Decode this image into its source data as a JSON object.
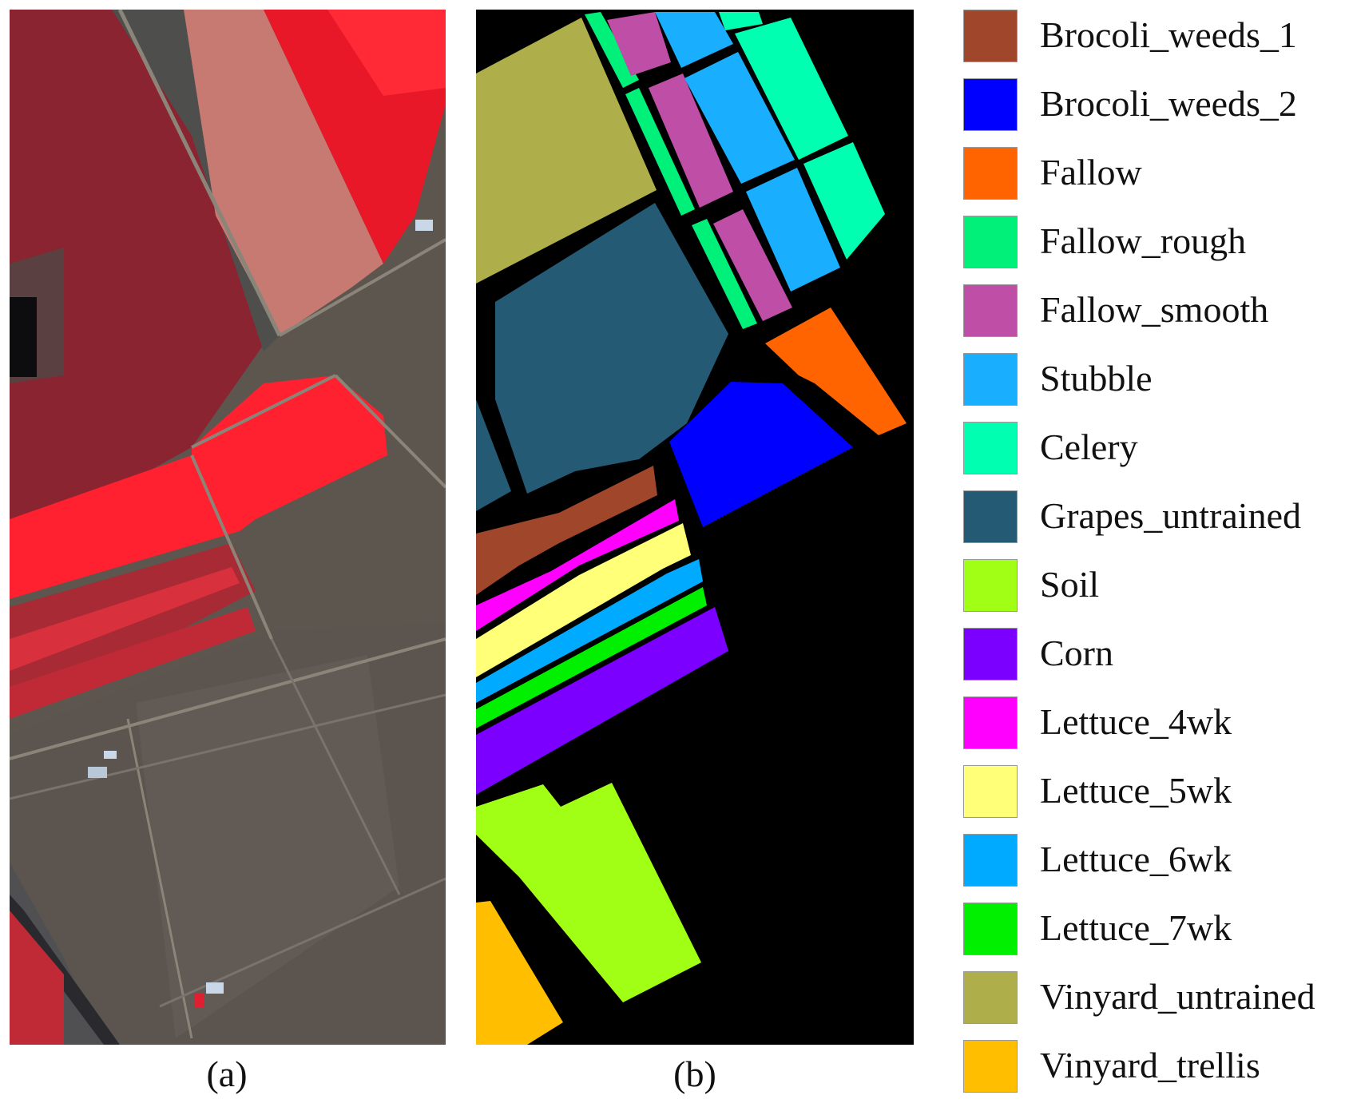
{
  "figure": {
    "panel_a": {
      "caption": "(a)"
    },
    "panel_b": {
      "caption": "(b)",
      "background_color": "#000000"
    }
  },
  "legend": {
    "items": [
      {
        "label": "Brocoli_weeds_1",
        "color": "#A0462B"
      },
      {
        "label": "Brocoli_weeds_2",
        "color": "#0000FF"
      },
      {
        "label": "Fallow",
        "color": "#FF6400"
      },
      {
        "label": "Fallow_rough",
        "color": "#00F07A"
      },
      {
        "label": "Fallow_smooth",
        "color": "#BE4EA6"
      },
      {
        "label": "Stubble",
        "color": "#1AAEFF"
      },
      {
        "label": "Celery",
        "color": "#00FFB0"
      },
      {
        "label": "Grapes_untrained",
        "color": "#245A74"
      },
      {
        "label": "Soil",
        "color": "#A0FF14"
      },
      {
        "label": "Corn",
        "color": "#7B00FF"
      },
      {
        "label": "Lettuce_4wk",
        "color": "#FF00FF"
      },
      {
        "label": "Lettuce_5wk",
        "color": "#FFFF78"
      },
      {
        "label": "Lettuce_6wk",
        "color": "#00AAFF"
      },
      {
        "label": "Lettuce_7wk",
        "color": "#00F000"
      },
      {
        "label": "Vinyard_untrained",
        "color": "#AEAE4A"
      },
      {
        "label": "Vinyard_trellis",
        "color": "#FFBE00"
      }
    ]
  }
}
